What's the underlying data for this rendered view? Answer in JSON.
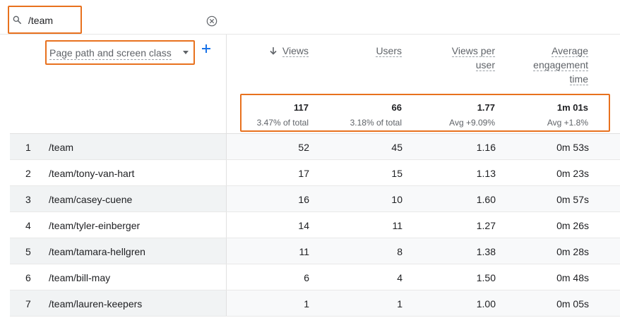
{
  "search": {
    "value": "/team"
  },
  "dimension": {
    "label": "Page path and screen class"
  },
  "columns": {
    "views": "Views",
    "users": "Users",
    "views_per_user_line1": "Views per",
    "views_per_user_line2": "user",
    "avg_eng_line1": "Average",
    "avg_eng_line2": "engagement",
    "avg_eng_line3": "time"
  },
  "totals": {
    "views": "117",
    "views_sub": "3.47% of total",
    "users": "66",
    "users_sub": "3.18% of total",
    "views_per_user": "1.77",
    "views_per_user_sub": "Avg +9.09%",
    "avg_eng": "1m 01s",
    "avg_eng_sub": "Avg +1.8%"
  },
  "rows": [
    {
      "index": "1",
      "path": "/team",
      "views": "52",
      "users": "45",
      "vpu": "1.16",
      "time": "0m 53s"
    },
    {
      "index": "2",
      "path": "/team/tony-van-hart",
      "views": "17",
      "users": "15",
      "vpu": "1.13",
      "time": "0m 23s"
    },
    {
      "index": "3",
      "path": "/team/casey-cuene",
      "views": "16",
      "users": "10",
      "vpu": "1.60",
      "time": "0m 57s"
    },
    {
      "index": "4",
      "path": "/team/tyler-einberger",
      "views": "14",
      "users": "11",
      "vpu": "1.27",
      "time": "0m 26s"
    },
    {
      "index": "5",
      "path": "/team/tamara-hellgren",
      "views": "11",
      "users": "8",
      "vpu": "1.38",
      "time": "0m 28s"
    },
    {
      "index": "6",
      "path": "/team/bill-may",
      "views": "6",
      "users": "4",
      "vpu": "1.50",
      "time": "0m 48s"
    },
    {
      "index": "7",
      "path": "/team/lauren-keepers",
      "views": "1",
      "users": "1",
      "vpu": "1.00",
      "time": "0m 05s"
    }
  ],
  "icons": {
    "search": "search-icon",
    "clear": "clear-circle-icon",
    "caret": "caret-down-icon",
    "add": "plus-icon",
    "sort": "arrow-down-icon"
  },
  "colors": {
    "highlight": "#e8711e",
    "accent": "#1a73e8"
  }
}
